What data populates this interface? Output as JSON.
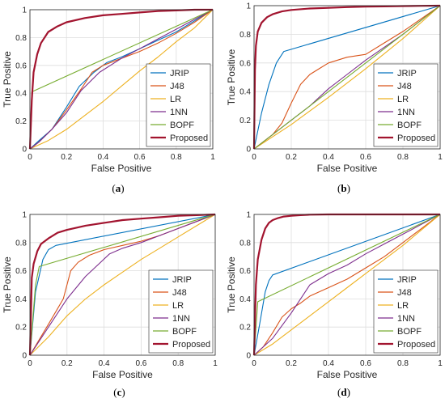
{
  "chart_data": [
    {
      "type": "line",
      "caption_prefix": "(",
      "caption_letter": "a",
      "caption_suffix": ")",
      "xlabel": "False Positive",
      "ylabel": "True Positive",
      "xlim": [
        0,
        1
      ],
      "ylim": [
        0,
        1
      ],
      "xticks": [
        "0",
        "0.2",
        "0.4",
        "0.6",
        "0.8",
        "1"
      ],
      "yticks": [
        "0",
        "0.2",
        "0.4",
        "0.6",
        "0.8",
        "1"
      ],
      "legend_position": "bottom-right",
      "series": [
        {
          "name": "JRIP",
          "color": "#0072BD",
          "x": [
            0,
            0.05,
            0.12,
            0.2,
            0.27,
            0.35,
            0.42,
            0.5,
            0.6,
            0.7,
            0.8,
            0.9,
            1
          ],
          "y": [
            0,
            0.06,
            0.14,
            0.3,
            0.45,
            0.55,
            0.62,
            0.66,
            0.72,
            0.78,
            0.84,
            0.92,
            1
          ]
        },
        {
          "name": "J48",
          "color": "#D95319",
          "x": [
            0,
            0.05,
            0.12,
            0.2,
            0.28,
            0.34,
            0.4,
            0.5,
            0.6,
            0.7,
            0.8,
            0.9,
            1
          ],
          "y": [
            0,
            0.05,
            0.14,
            0.28,
            0.43,
            0.55,
            0.6,
            0.65,
            0.7,
            0.76,
            0.83,
            0.91,
            1
          ]
        },
        {
          "name": "LR",
          "color": "#EDB120",
          "x": [
            0,
            0.1,
            0.2,
            0.3,
            0.4,
            0.5,
            0.6,
            0.7,
            0.8,
            0.9,
            1
          ],
          "y": [
            0,
            0.06,
            0.14,
            0.24,
            0.34,
            0.45,
            0.56,
            0.66,
            0.77,
            0.87,
            1
          ]
        },
        {
          "name": "1NN",
          "color": "#7E2F8E",
          "x": [
            0,
            0.05,
            0.12,
            0.2,
            0.28,
            0.38,
            0.5,
            0.6,
            0.7,
            0.8,
            0.9,
            1
          ],
          "y": [
            0,
            0.05,
            0.14,
            0.26,
            0.42,
            0.55,
            0.65,
            0.72,
            0.79,
            0.86,
            0.93,
            1
          ]
        },
        {
          "name": "BOPF",
          "color": "#77AC30",
          "x": [
            0,
            0.01,
            1
          ],
          "y": [
            0,
            0.41,
            1
          ]
        },
        {
          "name": "Proposed",
          "color": "#A2142F",
          "x": [
            0,
            0.01,
            0.02,
            0.04,
            0.06,
            0.1,
            0.15,
            0.2,
            0.3,
            0.4,
            0.5,
            0.6,
            0.7,
            0.8,
            0.9,
            1
          ],
          "y": [
            0,
            0.35,
            0.55,
            0.68,
            0.76,
            0.84,
            0.88,
            0.91,
            0.94,
            0.96,
            0.97,
            0.98,
            0.99,
            0.995,
            1,
            1
          ]
        }
      ]
    },
    {
      "type": "line",
      "caption_prefix": "(",
      "caption_letter": "b",
      "caption_suffix": ")",
      "xlabel": "False Positive",
      "ylabel": "True Positive",
      "xlim": [
        0,
        1
      ],
      "ylim": [
        0,
        1
      ],
      "xticks": [
        "0",
        "0.2",
        "0.4",
        "0.6",
        "0.8",
        "1"
      ],
      "yticks": [
        "0",
        "0.2",
        "0.4",
        "0.6",
        "0.8",
        "1"
      ],
      "legend_position": "bottom-right",
      "series": [
        {
          "name": "JRIP",
          "color": "#0072BD",
          "x": [
            0,
            0.04,
            0.08,
            0.12,
            0.16,
            1
          ],
          "y": [
            0,
            0.25,
            0.45,
            0.6,
            0.68,
            1
          ]
        },
        {
          "name": "J48",
          "color": "#D95319",
          "x": [
            0,
            0.1,
            0.15,
            0.2,
            0.25,
            0.3,
            0.35,
            0.4,
            0.5,
            0.6,
            0.7,
            0.8,
            0.9,
            1
          ],
          "y": [
            0,
            0.1,
            0.18,
            0.32,
            0.45,
            0.52,
            0.56,
            0.6,
            0.64,
            0.66,
            0.74,
            0.82,
            0.91,
            1
          ]
        },
        {
          "name": "LR",
          "color": "#EDB120",
          "x": [
            0,
            0.2,
            0.4,
            0.6,
            0.8,
            1
          ],
          "y": [
            0,
            0.17,
            0.36,
            0.56,
            0.77,
            1
          ]
        },
        {
          "name": "1NN",
          "color": "#7E2F8E",
          "x": [
            0,
            0.1,
            0.2,
            0.3,
            0.4,
            0.5,
            0.6,
            0.8,
            1
          ],
          "y": [
            0,
            0.1,
            0.2,
            0.3,
            0.42,
            0.52,
            0.62,
            0.8,
            1
          ]
        },
        {
          "name": "BOPF",
          "color": "#77AC30",
          "x": [
            0,
            0.2,
            0.4,
            0.6,
            0.8,
            1
          ],
          "y": [
            0,
            0.2,
            0.4,
            0.6,
            0.8,
            1
          ]
        },
        {
          "name": "Proposed",
          "color": "#A2142F",
          "x": [
            0,
            0.005,
            0.01,
            0.02,
            0.04,
            0.07,
            0.1,
            0.15,
            0.2,
            0.3,
            0.4,
            0.5,
            0.6,
            0.7,
            0.8,
            0.9,
            1
          ],
          "y": [
            0,
            0.55,
            0.72,
            0.82,
            0.88,
            0.92,
            0.94,
            0.96,
            0.97,
            0.98,
            0.985,
            0.99,
            0.993,
            0.995,
            0.997,
            0.999,
            1
          ]
        }
      ]
    },
    {
      "type": "line",
      "caption_prefix": "(",
      "caption_letter": "c",
      "caption_suffix": ")",
      "xlabel": "False Positive",
      "ylabel": "True Positive",
      "xlim": [
        0,
        1
      ],
      "ylim": [
        0,
        1
      ],
      "xticks": [
        "0",
        "0.2",
        "0.4",
        "0.6",
        "0.8",
        "1"
      ],
      "yticks": [
        "0",
        "0.2",
        "0.4",
        "0.6",
        "0.8",
        "1"
      ],
      "legend_position": "bottom-right",
      "series": [
        {
          "name": "JRIP",
          "color": "#0072BD",
          "x": [
            0,
            0.03,
            0.07,
            0.1,
            0.14,
            1
          ],
          "y": [
            0,
            0.45,
            0.68,
            0.75,
            0.78,
            1
          ]
        },
        {
          "name": "J48",
          "color": "#D95319",
          "x": [
            0,
            0.1,
            0.18,
            0.2,
            0.22,
            0.26,
            0.32,
            0.4,
            0.5,
            0.6,
            0.7,
            0.8,
            0.9,
            1
          ],
          "y": [
            0,
            0.22,
            0.4,
            0.5,
            0.6,
            0.66,
            0.71,
            0.75,
            0.78,
            0.81,
            0.85,
            0.9,
            0.95,
            1
          ]
        },
        {
          "name": "LR",
          "color": "#EDB120",
          "x": [
            0,
            0.1,
            0.2,
            0.3,
            0.4,
            0.5,
            0.6,
            0.7,
            0.8,
            0.9,
            1
          ],
          "y": [
            0,
            0.13,
            0.28,
            0.4,
            0.5,
            0.59,
            0.68,
            0.76,
            0.84,
            0.92,
            1
          ]
        },
        {
          "name": "1NN",
          "color": "#7E2F8E",
          "x": [
            0,
            0.1,
            0.2,
            0.3,
            0.43,
            0.5,
            0.6,
            0.7,
            0.8,
            0.9,
            1
          ],
          "y": [
            0,
            0.2,
            0.4,
            0.56,
            0.72,
            0.76,
            0.8,
            0.85,
            0.9,
            0.95,
            1
          ]
        },
        {
          "name": "BOPF",
          "color": "#77AC30",
          "x": [
            0,
            0.03,
            0.05,
            1
          ],
          "y": [
            0,
            0.5,
            0.63,
            1
          ]
        },
        {
          "name": "Proposed",
          "color": "#A2142F",
          "x": [
            0,
            0.01,
            0.02,
            0.04,
            0.06,
            0.1,
            0.15,
            0.2,
            0.3,
            0.4,
            0.5,
            0.6,
            0.7,
            0.8,
            0.9,
            1
          ],
          "y": [
            0,
            0.55,
            0.65,
            0.74,
            0.79,
            0.83,
            0.87,
            0.89,
            0.92,
            0.94,
            0.96,
            0.97,
            0.98,
            0.99,
            0.995,
            1
          ]
        }
      ]
    },
    {
      "type": "line",
      "caption_prefix": "(",
      "caption_letter": "d",
      "caption_suffix": ")",
      "xlabel": "False Positive",
      "ylabel": "True Positive",
      "xlim": [
        0,
        1
      ],
      "ylim": [
        0,
        1
      ],
      "xticks": [
        "0",
        "0.2",
        "0.4",
        "0.6",
        "0.8",
        "1"
      ],
      "yticks": [
        "0",
        "0.2",
        "0.4",
        "0.6",
        "0.8",
        "1"
      ],
      "legend_position": "bottom-right",
      "series": [
        {
          "name": "JRIP",
          "color": "#0072BD",
          "x": [
            0,
            0.03,
            0.06,
            0.08,
            0.1,
            1
          ],
          "y": [
            0,
            0.22,
            0.45,
            0.53,
            0.57,
            1
          ]
        },
        {
          "name": "J48",
          "color": "#D95319",
          "x": [
            0,
            0.05,
            0.1,
            0.15,
            0.2,
            0.25,
            0.3,
            0.4,
            0.5,
            0.6,
            0.7,
            0.8,
            0.9,
            1
          ],
          "y": [
            0,
            0.06,
            0.16,
            0.27,
            0.33,
            0.37,
            0.42,
            0.48,
            0.54,
            0.62,
            0.7,
            0.8,
            0.9,
            1
          ]
        },
        {
          "name": "LR",
          "color": "#EDB120",
          "x": [
            0,
            0.1,
            0.2,
            0.3,
            0.4,
            0.5,
            0.6,
            0.7,
            0.8,
            0.9,
            1
          ],
          "y": [
            0,
            0.08,
            0.18,
            0.28,
            0.38,
            0.48,
            0.58,
            0.68,
            0.78,
            0.89,
            1
          ]
        },
        {
          "name": "1NN",
          "color": "#7E2F8E",
          "x": [
            0,
            0.1,
            0.2,
            0.3,
            0.4,
            0.5,
            0.6,
            0.7,
            0.8,
            0.9,
            1
          ],
          "y": [
            0,
            0.12,
            0.3,
            0.5,
            0.58,
            0.64,
            0.72,
            0.79,
            0.86,
            0.93,
            1
          ]
        },
        {
          "name": "BOPF",
          "color": "#77AC30",
          "x": [
            0,
            0.02,
            1
          ],
          "y": [
            0,
            0.38,
            1
          ]
        },
        {
          "name": "Proposed",
          "color": "#A2142F",
          "x": [
            0,
            0.01,
            0.02,
            0.04,
            0.06,
            0.08,
            0.1,
            0.13,
            0.16,
            0.2,
            0.25,
            0.3,
            0.4,
            0.5,
            0.6,
            0.8,
            1
          ],
          "y": [
            0,
            0.5,
            0.68,
            0.82,
            0.9,
            0.94,
            0.96,
            0.975,
            0.985,
            0.99,
            0.995,
            0.998,
            1,
            1,
            1,
            1,
            1
          ]
        }
      ]
    }
  ]
}
